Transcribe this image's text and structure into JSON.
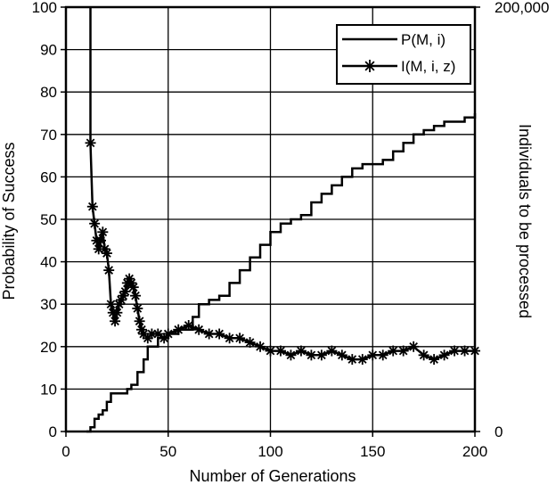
{
  "chart_data": {
    "type": "line",
    "xlabel": "Number of Generations",
    "ylabel": "Probability of Success",
    "y2label": "Individuals to be processed",
    "xlim": [
      0,
      200
    ],
    "ylim": [
      0,
      100
    ],
    "y2lim": [
      0,
      200000
    ],
    "x_ticks": [
      0,
      50,
      100,
      150,
      200
    ],
    "x_tick_labels": [
      "0",
      "50",
      "100",
      "150",
      "200"
    ],
    "y_ticks": [
      0,
      10,
      20,
      30,
      40,
      50,
      60,
      70,
      80,
      90,
      100
    ],
    "y_tick_labels": [
      "0",
      "10",
      "20",
      "30",
      "40",
      "50",
      "60",
      "70",
      "80",
      "90",
      "100"
    ],
    "y2_ticks": [
      0,
      200000
    ],
    "y2_tick_labels": [
      "0",
      "200,000"
    ],
    "grid": true,
    "legend_position": "top-right",
    "series": [
      {
        "name": "P(M, i)",
        "axis": "left",
        "marker": "none",
        "color": "#000000",
        "x": [
          10,
          12,
          14,
          16,
          18,
          20,
          22,
          25,
          28,
          30,
          32,
          35,
          38,
          40,
          45,
          50,
          55,
          60,
          62,
          65,
          70,
          75,
          80,
          85,
          90,
          95,
          100,
          105,
          110,
          115,
          120,
          125,
          130,
          135,
          140,
          145,
          150,
          155,
          160,
          165,
          170,
          175,
          180,
          185,
          190,
          195,
          200
        ],
        "y": [
          0,
          1,
          3,
          4,
          5,
          7,
          9,
          9,
          9,
          10,
          11,
          14,
          17,
          20,
          22,
          23,
          24,
          24,
          27,
          30,
          31,
          32,
          35,
          38,
          41,
          44,
          47,
          49,
          50,
          51,
          54,
          56,
          58,
          60,
          62,
          63,
          63,
          64,
          66,
          68,
          70,
          71,
          72,
          73,
          73,
          74,
          75
        ]
      },
      {
        "name": "I(M, i, z)",
        "axis": "right",
        "marker": "asterisk",
        "color": "#000000",
        "x": [
          12,
          13,
          14,
          15,
          16,
          17,
          18,
          19,
          20,
          21,
          22,
          23,
          24,
          25,
          26,
          27,
          28,
          29,
          30,
          31,
          32,
          33,
          34,
          35,
          36,
          37,
          38,
          40,
          42,
          45,
          48,
          50,
          55,
          60,
          65,
          70,
          75,
          80,
          85,
          90,
          95,
          100,
          105,
          110,
          115,
          120,
          125,
          130,
          135,
          140,
          145,
          150,
          155,
          160,
          165,
          170,
          175,
          180,
          185,
          190,
          195,
          200
        ],
        "y": [
          136000,
          106000,
          98000,
          90000,
          86000,
          90000,
          94000,
          86000,
          84000,
          76000,
          60000,
          56000,
          52000,
          56000,
          60000,
          62000,
          64000,
          66000,
          70000,
          72000,
          70000,
          68000,
          64000,
          58000,
          52000,
          48000,
          46000,
          44000,
          46000,
          46000,
          44000,
          46000,
          48000,
          50000,
          48000,
          46000,
          46000,
          44000,
          44000,
          42000,
          40000,
          38000,
          38000,
          36000,
          38000,
          36000,
          36000,
          38000,
          36000,
          34000,
          34000,
          36000,
          36000,
          38000,
          38000,
          40000,
          36000,
          34000,
          36000,
          38000,
          38000,
          38000
        ]
      }
    ],
    "p_offscale": {
      "note_x": [
        0,
        1,
        2,
        3,
        4,
        5,
        6,
        7,
        8,
        9,
        10
      ],
      "note_y": [
        100,
        100,
        100,
        100,
        100,
        100,
        100,
        100,
        100,
        100,
        100
      ]
    },
    "i_offscale": {
      "x": [
        1,
        2,
        3,
        4,
        5,
        6,
        7,
        8,
        9,
        10,
        11,
        12
      ],
      "y": [
        200000,
        200000,
        200000,
        200000,
        200000,
        200000,
        200000,
        200000,
        200000,
        200000,
        200000,
        200000
      ]
    }
  }
}
